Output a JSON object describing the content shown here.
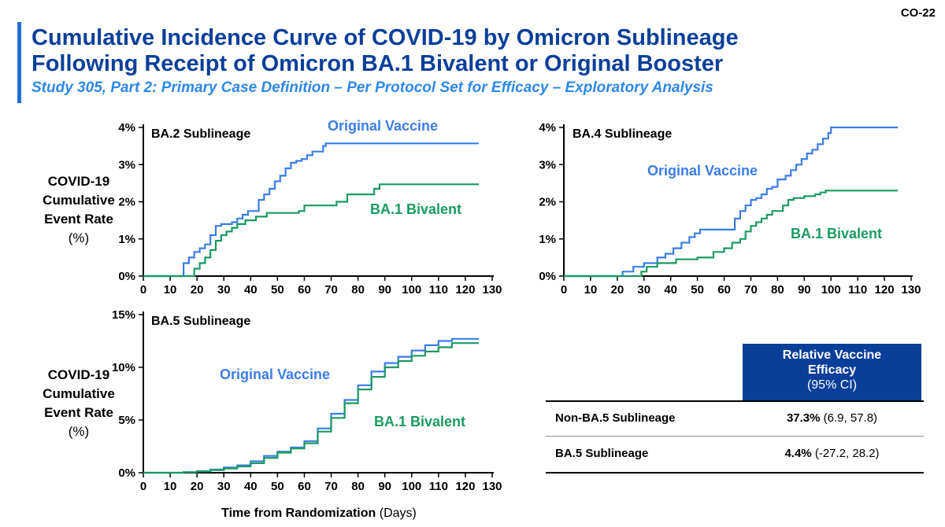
{
  "slide_id": "CO-22",
  "title_line1": "Cumulative Incidence Curve of COVID-19 by Omicron Sublineage",
  "title_line2": "Following Receipt of Omicron BA.1 Bivalent or Original Booster",
  "subtitle": "Study 305, Part 2: Primary Case Definition – Per Protocol Set for Efficacy – Exploratory Analysis",
  "y_axis_label": {
    "line1": "COVID-19",
    "line2": "Cumulative",
    "line3": "Event Rate",
    "line4": "(%)"
  },
  "x_axis_title": {
    "bold": "Time from Randomization",
    "unit": "(Days)"
  },
  "colors": {
    "original": "#3b7de6",
    "bivalent": "#1a9a62",
    "title": "#0a3f99",
    "subtitle": "#2e88e6",
    "table_header": "#0a3f99"
  },
  "chart_data": [
    {
      "type": "line",
      "title": "BA.2 Sublineage",
      "xlabel": "Time from Randomization (Days)",
      "ylabel": "COVID-19 Cumulative Event Rate (%)",
      "xlim": [
        0,
        130
      ],
      "ylim": [
        0,
        4
      ],
      "x_ticks": [
        0,
        10,
        20,
        30,
        40,
        50,
        60,
        70,
        80,
        90,
        100,
        110,
        120,
        130
      ],
      "y_ticks": [
        0,
        1,
        2,
        3,
        4
      ],
      "y_tick_labels": [
        "0%",
        "1%",
        "2%",
        "3%",
        "4%"
      ],
      "series": [
        {
          "name": "Original Vaccine",
          "x": [
            0,
            15,
            17,
            19,
            21,
            23,
            25,
            27,
            29,
            31,
            33,
            35,
            37,
            39,
            41,
            43,
            45,
            47,
            49,
            51,
            53,
            55,
            57,
            59,
            61,
            63,
            65,
            67,
            68,
            125
          ],
          "y": [
            0,
            0.35,
            0.5,
            0.65,
            0.75,
            0.85,
            1.1,
            1.35,
            1.4,
            1.4,
            1.45,
            1.55,
            1.65,
            1.75,
            1.75,
            2.05,
            2.2,
            2.35,
            2.55,
            2.7,
            2.9,
            3.05,
            3.1,
            3.15,
            3.25,
            3.35,
            3.35,
            3.5,
            3.57,
            3.57
          ]
        },
        {
          "name": "BA.1 Bivalent",
          "x": [
            0,
            19,
            21,
            23,
            25,
            27,
            29,
            31,
            33,
            35,
            38,
            42,
            46,
            58,
            60,
            72,
            76,
            86,
            88,
            125
          ],
          "y": [
            0,
            0.2,
            0.35,
            0.5,
            0.7,
            0.95,
            1.1,
            1.2,
            1.3,
            1.4,
            1.5,
            1.6,
            1.7,
            1.75,
            1.9,
            2.0,
            2.2,
            2.35,
            2.47,
            2.47
          ]
        }
      ],
      "annotations": [
        {
          "text": "Original Vaccine",
          "series": "Original Vaccine"
        },
        {
          "text": "BA.1 Bivalent",
          "series": "BA.1 Bivalent"
        }
      ]
    },
    {
      "type": "line",
      "title": "BA.4 Sublineage",
      "xlabel": "Time from Randomization (Days)",
      "ylabel": "COVID-19 Cumulative Event Rate (%)",
      "xlim": [
        0,
        130
      ],
      "ylim": [
        0,
        4
      ],
      "x_ticks": [
        0,
        10,
        20,
        30,
        40,
        50,
        60,
        70,
        80,
        90,
        100,
        110,
        120,
        130
      ],
      "y_ticks": [
        0,
        1,
        2,
        3,
        4
      ],
      "y_tick_labels": [
        "0%",
        "1%",
        "2%",
        "3%",
        "4%"
      ],
      "series": [
        {
          "name": "Original Vaccine",
          "x": [
            0,
            22,
            26,
            30,
            35,
            38,
            41,
            44,
            47,
            49,
            51,
            59,
            64,
            66,
            68,
            70,
            72,
            74,
            76,
            78,
            80,
            83,
            85,
            87,
            89,
            91,
            93,
            95,
            97,
            99,
            100,
            125
          ],
          "y": [
            0,
            0.12,
            0.25,
            0.35,
            0.5,
            0.6,
            0.75,
            0.9,
            1.05,
            1.15,
            1.25,
            1.25,
            1.55,
            1.75,
            1.9,
            2.05,
            2.1,
            2.2,
            2.35,
            2.4,
            2.6,
            2.7,
            2.85,
            3.0,
            3.15,
            3.3,
            3.4,
            3.55,
            3.7,
            3.85,
            4.0,
            4.0
          ]
        },
        {
          "name": "BA.1 Bivalent",
          "x": [
            0,
            29,
            31,
            35,
            42,
            50,
            56,
            60,
            63,
            66,
            68,
            70,
            72,
            74,
            76,
            78,
            82,
            84,
            86,
            90,
            94,
            96,
            98,
            125
          ],
          "y": [
            0,
            0.12,
            0.25,
            0.35,
            0.45,
            0.5,
            0.65,
            0.75,
            0.9,
            1.0,
            1.2,
            1.35,
            1.45,
            1.55,
            1.65,
            1.75,
            1.9,
            2.05,
            2.1,
            2.15,
            2.2,
            2.25,
            2.3,
            2.3
          ]
        }
      ],
      "annotations": [
        {
          "text": "Original Vaccine",
          "series": "Original Vaccine"
        },
        {
          "text": "BA.1 Bivalent",
          "series": "BA.1 Bivalent"
        }
      ]
    },
    {
      "type": "line",
      "title": "BA.5 Sublineage",
      "xlabel": "Time from Randomization (Days)",
      "ylabel": "COVID-19 Cumulative Event Rate (%)",
      "xlim": [
        0,
        130
      ],
      "ylim": [
        0,
        15
      ],
      "x_ticks": [
        0,
        10,
        20,
        30,
        40,
        50,
        60,
        70,
        80,
        90,
        100,
        110,
        120,
        130
      ],
      "y_ticks": [
        0,
        5,
        10,
        15
      ],
      "y_tick_labels": [
        "0%",
        "5%",
        "10%",
        "15%"
      ],
      "series": [
        {
          "name": "Original Vaccine",
          "x": [
            0,
            15,
            20,
            25,
            30,
            35,
            40,
            45,
            50,
            55,
            60,
            65,
            70,
            75,
            80,
            85,
            90,
            95,
            100,
            105,
            110,
            115,
            125
          ],
          "y": [
            0,
            0.05,
            0.15,
            0.3,
            0.5,
            0.7,
            1.1,
            1.6,
            2.0,
            2.4,
            3.0,
            4.2,
            5.6,
            6.9,
            8.3,
            9.6,
            10.4,
            11.0,
            11.6,
            12.1,
            12.5,
            12.7,
            12.7
          ]
        },
        {
          "name": "BA.1 Bivalent",
          "x": [
            0,
            15,
            20,
            25,
            30,
            35,
            40,
            45,
            50,
            55,
            60,
            65,
            70,
            75,
            80,
            85,
            90,
            95,
            100,
            105,
            110,
            115,
            125
          ],
          "y": [
            0,
            0.05,
            0.12,
            0.25,
            0.4,
            0.6,
            0.9,
            1.4,
            1.9,
            2.3,
            2.8,
            3.9,
            5.2,
            6.6,
            7.9,
            9.1,
            10.0,
            10.6,
            11.1,
            11.5,
            11.9,
            12.3,
            12.3
          ]
        }
      ],
      "annotations": [
        {
          "text": "Original Vaccine",
          "series": "Original Vaccine"
        },
        {
          "text": "BA.1 Bivalent",
          "series": "BA.1 Bivalent"
        }
      ]
    }
  ],
  "rve_table": {
    "header_line1": "Relative Vaccine",
    "header_line2": "Efficacy",
    "header_ci": "(95% CI)",
    "rows": [
      {
        "label": "Non-BA.5 Sublineage",
        "value": "37.3%",
        "ci": "(6.9, 57.8)"
      },
      {
        "label": "BA.5 Sublineage",
        "value": "4.4%",
        "ci": "(-27.2, 28.2)"
      }
    ]
  }
}
